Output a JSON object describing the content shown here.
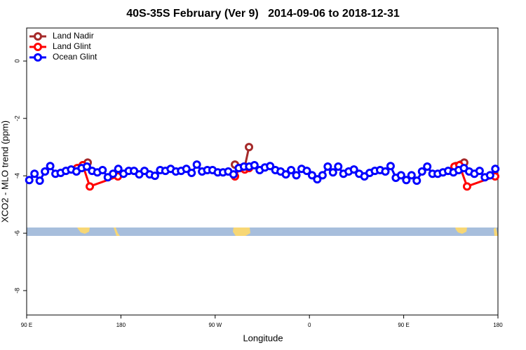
{
  "chart_data": {
    "type": "line",
    "title": "40S-35S February (Ver 9)   2014-09-06 to 2018-12-31",
    "x_label": "Longitude",
    "y_label": "XCO2 - MLO trend (ppm)",
    "xlim": [
      90,
      540
    ],
    "ylim": [
      -8.85,
      1.15
    ],
    "xticks": [
      {
        "value": 90,
        "label": "90 E"
      },
      180,
      {
        "value": 270,
        "label": "90 W"
      },
      {
        "value": 360,
        "label": "0"
      },
      {
        "value": 450,
        "label": "90 E"
      },
      {
        "value": 540,
        "label": "180"
      }
    ],
    "yticks": [
      0,
      -2,
      -4,
      -6,
      -8
    ],
    "legend": "top-left",
    "series": [
      {
        "name": "Land Nadir",
        "color": "#a52a2a",
        "x": [
          138.9,
          143.6,
          148.3,
          null,
          288.9,
          293.6,
          298.3,
          302.3,
          null,
          499.8,
          504.5,
          507.8
        ],
        "values": [
          -3.73,
          -3.63,
          -3.54,
          null,
          -3.61,
          -3.73,
          -3.68,
          -3.0,
          null,
          -3.66,
          -3.61,
          -3.54
        ]
      },
      {
        "name": "Land Glint",
        "color": "#ff0000",
        "x": [
          138.2,
          143.6,
          150.3,
          177.1,
          null,
          288.9,
          293.6,
          298.3,
          302.3,
          null,
          498.5,
          503.2,
          510.5,
          537.3
        ],
        "values": [
          -3.73,
          -3.63,
          -4.37,
          -4.02,
          null,
          -4.02,
          -3.73,
          -3.78,
          -3.73,
          null,
          -3.68,
          -3.63,
          -4.37,
          -4.02
        ]
      },
      {
        "name": "Ocean Glint",
        "color": "#0000ff",
        "x": [
          92.5,
          97.5,
          102.5,
          107.5,
          112.5,
          117.5,
          122.5,
          127.5,
          132.5,
          137.5,
          142.5,
          147.5,
          152.5,
          157.5,
          162.5,
          167.5,
          172.5,
          177.5,
          182.5,
          187.5,
          192.5,
          197.5,
          202.5,
          207.5,
          212.5,
          217.5,
          222.5,
          227.5,
          232.5,
          237.5,
          242.5,
          247.5,
          252.5,
          257.5,
          262.5,
          267.5,
          272.5,
          277.5,
          282.5,
          287.5,
          292.5,
          297.5,
          302.5,
          307.5,
          312.5,
          317.5,
          322.5,
          327.5,
          332.5,
          337.5,
          342.5,
          347.5,
          352.5,
          357.5,
          362.5,
          367.5,
          372.5,
          377.5,
          382.5,
          387.5,
          392.5,
          397.5,
          402.5,
          407.5,
          412.5,
          417.5,
          422.5,
          427.5,
          432.5,
          437.5,
          442.5,
          447.5,
          452.5,
          457.5,
          462.5,
          467.5,
          472.5,
          477.5,
          482.5,
          487.5,
          492.5,
          497.5,
          502.5,
          507.5,
          512.5,
          517.5,
          522.5,
          527.5,
          532.5,
          537.5
        ],
        "values": [
          -4.15,
          -3.93,
          -4.17,
          -3.85,
          -3.66,
          -3.93,
          -3.9,
          -3.83,
          -3.78,
          -3.85,
          -3.73,
          -3.68,
          -3.83,
          -3.88,
          -3.8,
          -4.05,
          -3.93,
          -3.76,
          -3.93,
          -3.83,
          -3.83,
          -3.95,
          -3.83,
          -3.95,
          -4.0,
          -3.8,
          -3.83,
          -3.76,
          -3.85,
          -3.83,
          -3.76,
          -3.9,
          -3.61,
          -3.85,
          -3.8,
          -3.8,
          -3.88,
          -3.88,
          -3.85,
          -3.95,
          -3.73,
          -3.68,
          -3.68,
          -3.63,
          -3.8,
          -3.71,
          -3.66,
          -3.8,
          -3.85,
          -3.95,
          -3.8,
          -3.98,
          -3.76,
          -3.83,
          -3.98,
          -4.12,
          -3.98,
          -3.68,
          -3.88,
          -3.68,
          -3.93,
          -3.85,
          -3.78,
          -3.93,
          -4.02,
          -3.9,
          -3.83,
          -3.8,
          -3.85,
          -3.66,
          -4.07,
          -3.98,
          -4.15,
          -3.98,
          -4.17,
          -3.85,
          -3.68,
          -3.93,
          -3.93,
          -3.88,
          -3.83,
          -3.88,
          -3.8,
          -3.73,
          -3.85,
          -3.93,
          -3.83,
          -4.05,
          -3.98,
          -3.76
        ]
      }
    ]
  }
}
